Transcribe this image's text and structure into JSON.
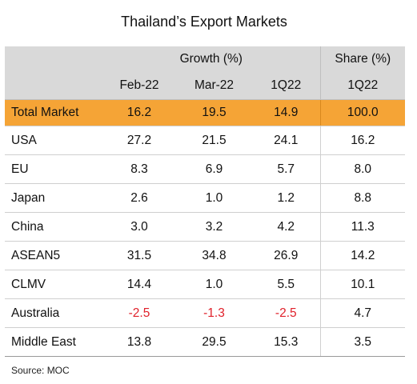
{
  "title": "Thailand’s Export Markets",
  "header": {
    "growth_label": "Growth (%)",
    "share_label": "Share (%)",
    "columns": [
      "Feb-22",
      "Mar-22",
      "1Q22",
      "1Q22"
    ]
  },
  "rows": [
    {
      "name": "Total Market",
      "feb": "16.2",
      "mar": "19.5",
      "q1": "14.9",
      "share": "100.0"
    },
    {
      "name": "USA",
      "feb": "27.2",
      "mar": "21.5",
      "q1": "24.1",
      "share": "16.2"
    },
    {
      "name": "EU",
      "feb": "8.3",
      "mar": "6.9",
      "q1": "5.7",
      "share": "8.0"
    },
    {
      "name": "Japan",
      "feb": "2.6",
      "mar": "1.0",
      "q1": "1.2",
      "share": "8.8"
    },
    {
      "name": "China",
      "feb": "3.0",
      "mar": "3.2",
      "q1": "4.2",
      "share": "11.3"
    },
    {
      "name": "ASEAN5",
      "feb": "31.5",
      "mar": "34.8",
      "q1": "26.9",
      "share": "14.2"
    },
    {
      "name": "CLMV",
      "feb": "14.4",
      "mar": "1.0",
      "q1": "5.5",
      "share": "10.1"
    },
    {
      "name": "Australia",
      "feb": "-2.5",
      "mar": "-1.3",
      "q1": "-2.5",
      "share": "4.7"
    },
    {
      "name": "Middle East",
      "feb": "13.8",
      "mar": "29.5",
      "q1": "15.3",
      "share": "3.5"
    }
  ],
  "source": "Source: MOC",
  "colors": {
    "header_bg": "#d9d9d9",
    "total_row_bg": "#f5a436",
    "negative_text": "#e0202a"
  }
}
